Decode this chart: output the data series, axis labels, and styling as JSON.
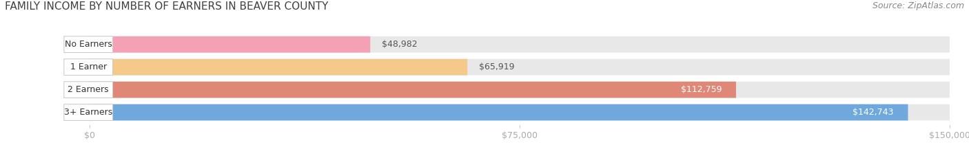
{
  "title": "FAMILY INCOME BY NUMBER OF EARNERS IN BEAVER COUNTY",
  "source": "Source: ZipAtlas.com",
  "categories": [
    "No Earners",
    "1 Earner",
    "2 Earners",
    "3+ Earners"
  ],
  "values": [
    48982,
    65919,
    112759,
    142743
  ],
  "bar_colors": [
    "#f4a0b5",
    "#f5c98a",
    "#e08878",
    "#6fa8dc"
  ],
  "bar_bg_color": "#e8e8e8",
  "value_inside_color": "#ffffff",
  "value_outside_color": "#555555",
  "xlim": [
    0,
    150000
  ],
  "xticks": [
    0,
    75000,
    150000
  ],
  "xtick_labels": [
    "$0",
    "$75,000",
    "$150,000"
  ],
  "title_fontsize": 11,
  "source_fontsize": 9,
  "label_fontsize": 9,
  "value_fontsize": 9,
  "tick_fontsize": 9,
  "background_color": "#ffffff",
  "bar_background_color": "#e8e8e8",
  "inside_threshold": 90000
}
